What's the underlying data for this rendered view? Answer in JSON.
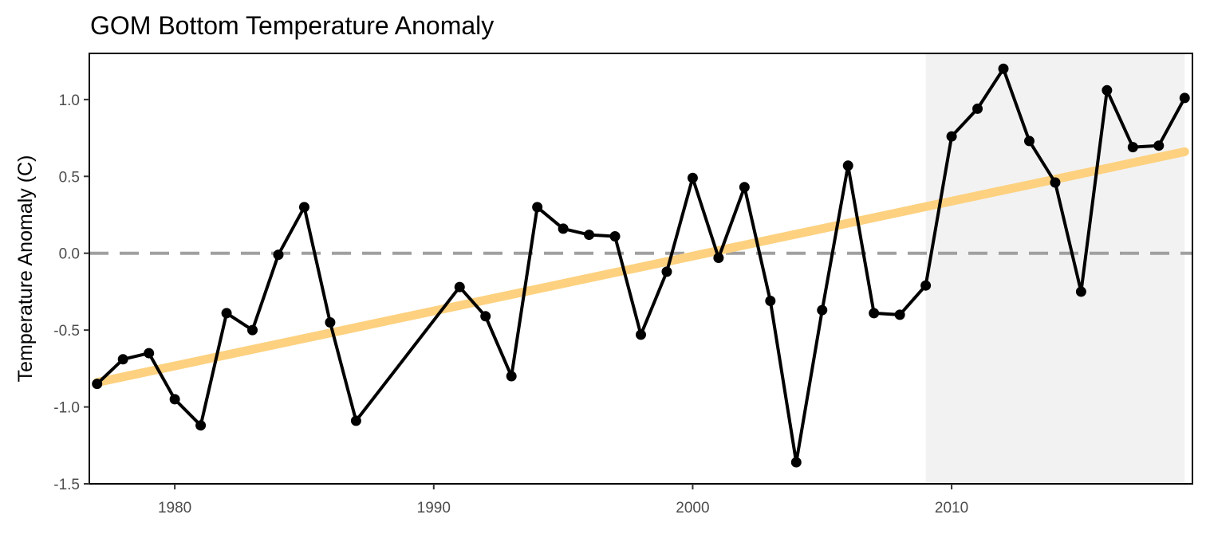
{
  "chart_data": {
    "type": "line",
    "title": "GOM Bottom Temperature Anomaly",
    "xlabel": "",
    "ylabel": "Temperature Anomaly (C)",
    "xlim": [
      1976.7,
      2019.3
    ],
    "ylim": [
      -1.5,
      1.3
    ],
    "x_ticks": [
      1980,
      1990,
      2000,
      2010
    ],
    "x_tick_labels": [
      "1980",
      "1990",
      "2000",
      "2010"
    ],
    "y_ticks": [
      -1.5,
      -1.0,
      -0.5,
      0.0,
      0.5,
      1.0
    ],
    "y_tick_labels": [
      "-1.5",
      "-1.0",
      "-0.5",
      "0.0",
      "0.5",
      "1.0"
    ],
    "grid": false,
    "reference_line": {
      "y": 0.0,
      "style": "dashed",
      "color": "#a0a0a0"
    },
    "shaded_region": {
      "x_start": 2009,
      "x_end": 2019,
      "color": "#f2f2f2"
    },
    "trend_line": {
      "x": [
        1977,
        2019
      ],
      "y": [
        -0.84,
        0.66
      ],
      "color": "#fdd17f"
    },
    "series": [
      {
        "color": "#000000",
        "x": [
          1977,
          1978,
          1979,
          1980,
          1981,
          1982,
          1983,
          1984,
          1985,
          1986,
          1987,
          1991,
          1992,
          1993,
          1994,
          1995,
          1996,
          1997,
          1998,
          1999,
          2000,
          2001,
          2002,
          2003,
          2004,
          2005,
          2006,
          2007,
          2008,
          2009,
          2010,
          2011,
          2012,
          2013,
          2014,
          2015,
          2016,
          2017,
          2018,
          2019
        ],
        "y": [
          -0.85,
          -0.69,
          -0.65,
          -0.95,
          -1.12,
          -0.39,
          -0.5,
          -0.01,
          0.3,
          -0.45,
          -1.09,
          -0.22,
          -0.41,
          -0.8,
          0.3,
          0.16,
          0.12,
          0.11,
          -0.53,
          -0.12,
          0.49,
          -0.03,
          0.43,
          -0.31,
          -1.36,
          -0.37,
          0.57,
          -0.39,
          -0.4,
          -0.21,
          0.76,
          0.94,
          1.2,
          0.73,
          0.46,
          -0.25,
          1.06,
          0.69,
          0.7,
          1.01
        ]
      }
    ]
  }
}
